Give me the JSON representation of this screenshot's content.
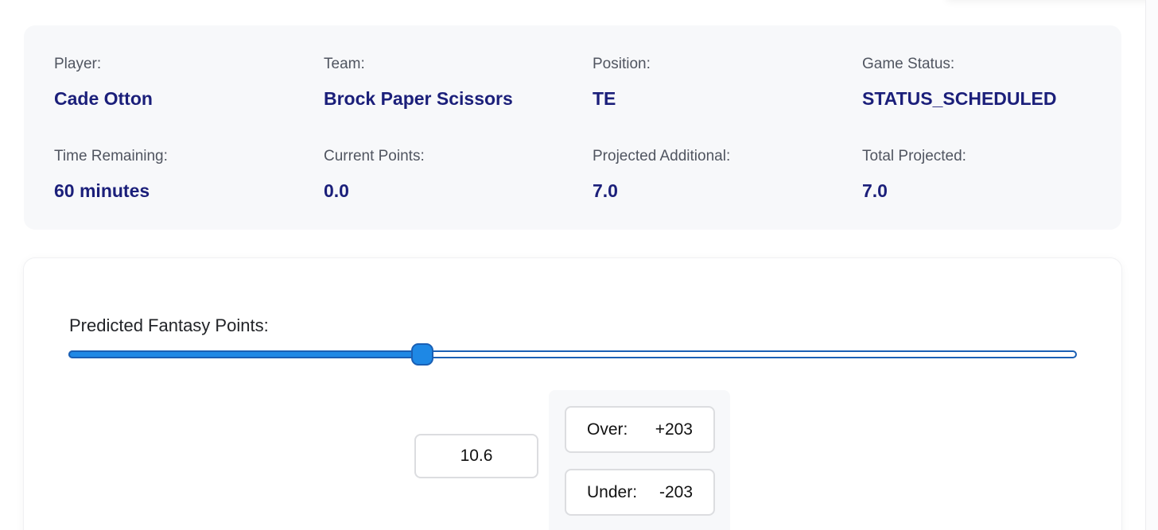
{
  "player_info": {
    "player": {
      "label": "Player:",
      "value": "Cade Otton"
    },
    "team": {
      "label": "Team:",
      "value": "Brock Paper Scissors"
    },
    "position": {
      "label": "Position:",
      "value": "TE"
    },
    "game_status": {
      "label": "Game Status:",
      "value": "STATUS_SCHEDULED"
    },
    "time_remaining": {
      "label": "Time Remaining:",
      "value": "60 minutes"
    },
    "current_points": {
      "label": "Current Points:",
      "value": "0.0"
    },
    "projected_additional": {
      "label": "Projected Additional:",
      "value": "7.0"
    },
    "total_projected": {
      "label": "Total Projected:",
      "value": "7.0"
    }
  },
  "prediction": {
    "label": "Predicted Fantasy Points:",
    "value": "10.6",
    "slider_level_percent": 35.1,
    "over": {
      "label": "Over:",
      "value": "+203"
    },
    "under": {
      "label": "Under:",
      "value": "-203"
    }
  },
  "colors": {
    "value_text": "#1b1f7a",
    "slider_fill": "#1e88e5",
    "slider_border": "#1a5fb4",
    "card_background": "#f7f8fa"
  }
}
